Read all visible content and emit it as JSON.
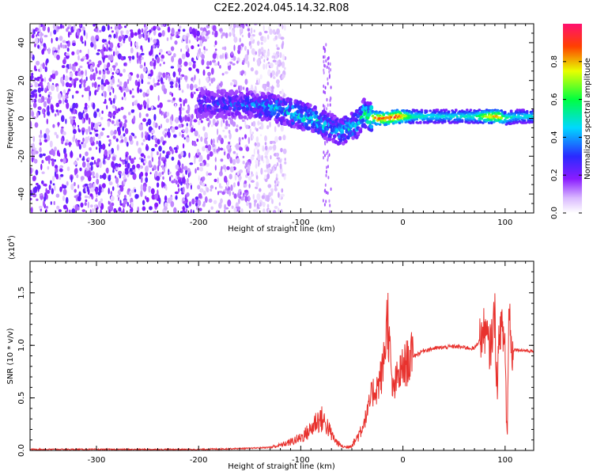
{
  "title": "C2E2.2024.045.14.32.R08",
  "colors": {
    "snr_line": "#e8322e",
    "spectrogram_bg": "#ffffff",
    "axis": "#000000"
  },
  "colorbar": {
    "label": "Normalized spectral amplitude",
    "ticks": [
      "0.0",
      "0.2",
      "0.4",
      "0.6",
      "0.8"
    ],
    "tick_values": [
      0.0,
      0.2,
      0.4,
      0.6,
      0.8
    ],
    "range": [
      0,
      1
    ],
    "colormap": "rainbow (white-purple-blue-cyan-green-yellow-red-pink)"
  },
  "chart_data": [
    {
      "type": "heatmap",
      "xlabel": "Height of straight line (km)",
      "ylabel": "Frequency (Hz)",
      "xlim": [
        -365,
        128
      ],
      "ylim": [
        -50,
        50
      ],
      "x_ticks": [
        "-300",
        "-200",
        "-100",
        "0",
        "100"
      ],
      "x_tick_values": [
        -300,
        -200,
        -100,
        0,
        100
      ],
      "y_ticks": [
        "40",
        "20",
        "0",
        "-20",
        "-40"
      ],
      "y_tick_values": [
        40,
        20,
        0,
        -20,
        -40
      ],
      "grid": false,
      "ridge": {
        "x": [
          -200,
          -150,
          -130,
          -110,
          -90,
          -75,
          -60,
          -45,
          -38,
          -32,
          -25,
          -15,
          -5,
          10,
          30,
          50,
          70,
          85,
          95,
          100,
          110,
          128
        ],
        "y": [
          8,
          7,
          6,
          3,
          0,
          -4,
          -7,
          -3,
          3,
          1,
          0,
          0,
          1,
          1,
          1,
          1,
          1,
          1,
          1,
          0,
          1,
          1
        ],
        "amplitude": [
          0.3,
          0.35,
          0.45,
          0.5,
          0.5,
          0.45,
          0.45,
          0.5,
          0.55,
          0.7,
          0.9,
          0.9,
          0.95,
          0.55,
          0.5,
          0.5,
          0.55,
          0.8,
          0.85,
          0.6,
          0.5,
          0.5
        ]
      },
      "noise_region": {
        "x_start": -365,
        "x_end": -135,
        "amplitude": 0.12
      }
    },
    {
      "type": "line",
      "xlabel": "Height of straight line (km)",
      "ylabel": "SNR (10 * v/v)",
      "y_multiplier": "(x10",
      "y_multiplier_exp": "4",
      "y_multiplier_close": ")",
      "xlim": [
        -365,
        128
      ],
      "ylim": [
        0,
        1.8
      ],
      "x_ticks": [
        "-300",
        "-200",
        "-100",
        "0",
        "100"
      ],
      "x_tick_values": [
        -300,
        -200,
        -100,
        0,
        100
      ],
      "y_ticks": [
        "0.0",
        "0.5",
        "1.0",
        "1.5"
      ],
      "y_tick_values": [
        0.0,
        0.5,
        1.0,
        1.5
      ],
      "grid": false,
      "series": [
        {
          "x": [
            -365,
            -300,
            -250,
            -200,
            -150,
            -130,
            -120,
            -110,
            -100,
            -90,
            -85,
            -80,
            -75,
            -70,
            -65,
            -60,
            -55,
            -50,
            -45,
            -40,
            -35,
            -30,
            -25,
            -20,
            -17,
            -15,
            -12,
            -10,
            -5,
            0,
            5,
            10,
            15,
            20,
            25,
            30,
            40,
            50,
            60,
            70,
            75,
            80,
            85,
            90,
            92,
            95,
            98,
            100,
            102,
            104,
            106,
            110,
            120,
            128
          ],
          "y": [
            0.01,
            0.01,
            0.01,
            0.01,
            0.02,
            0.03,
            0.05,
            0.08,
            0.12,
            0.2,
            0.28,
            0.3,
            0.25,
            0.15,
            0.08,
            0.04,
            0.03,
            0.05,
            0.12,
            0.22,
            0.35,
            0.55,
            0.6,
            0.75,
            1.05,
            1.3,
            0.8,
            0.55,
            0.7,
            0.78,
            0.85,
            0.9,
            0.92,
            0.95,
            0.96,
            0.97,
            0.98,
            0.99,
            0.98,
            0.97,
            1.05,
            1.15,
            0.95,
            1.3,
            0.6,
            1.2,
            1.1,
            1.0,
            0.05,
            1.5,
            0.95,
            0.96,
            0.95,
            0.94
          ]
        }
      ]
    }
  ]
}
